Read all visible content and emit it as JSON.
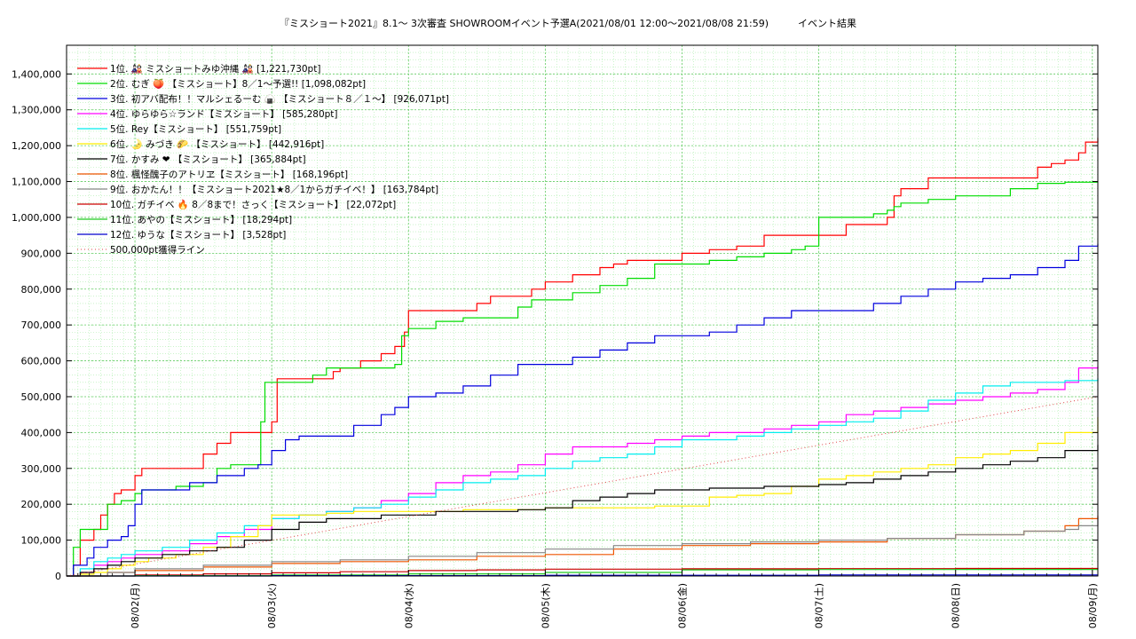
{
  "chart_data": {
    "type": "line",
    "title": "『ミスショート2021』8.1〜 3次審査 SHOWROOMイベント予選A(2021/08/01 12:00〜2021/08/08 21:59)　　　イベント結果",
    "xlabel": "",
    "ylabel": "",
    "x_ticks": [
      "08/02(月)",
      "08/03(火)",
      "08/04(水)",
      "08/05(木)",
      "08/06(金)",
      "08/07(土)",
      "08/08(日)",
      "08/09(月)"
    ],
    "x_tick_days": [
      1,
      2,
      3,
      4,
      5,
      6,
      7,
      8
    ],
    "xlim_days": [
      0.5,
      8.04
    ],
    "ylim": [
      0,
      1480000
    ],
    "y_ticks": [
      {
        "v": 0,
        "label": "0"
      },
      {
        "v": 100000,
        "label": "100,000"
      },
      {
        "v": 200000,
        "label": "200,000"
      },
      {
        "v": 300000,
        "label": "300,000"
      },
      {
        "v": 400000,
        "label": "400,000"
      },
      {
        "v": 500000,
        "label": "500,000"
      },
      {
        "v": 600000,
        "label": "600,000"
      },
      {
        "v": 700000,
        "label": "700,000"
      },
      {
        "v": 800000,
        "label": "800,000"
      },
      {
        "v": 900000,
        "label": "900,000"
      },
      {
        "v": 1000000,
        "label": "1,000,000"
      },
      {
        "v": 1100000,
        "label": "1,100,000"
      },
      {
        "v": 1200000,
        "label": "1,200,000"
      },
      {
        "v": 1300000,
        "label": "1,300,000"
      },
      {
        "v": 1400000,
        "label": "1,400,000"
      }
    ],
    "grid": true,
    "legend_position": "top-left",
    "series": [
      {
        "name": "1位.  🎎 ミスショートみゆ沖縄 🎎 [1,221,730pt]",
        "color": "#ff0000",
        "x": [
          0.5,
          0.55,
          0.6,
          0.7,
          0.75,
          0.8,
          0.85,
          0.9,
          1.0,
          1.05,
          1.1,
          1.3,
          1.5,
          1.6,
          1.7,
          1.8,
          1.9,
          2.0,
          2.04,
          2.1,
          2.4,
          2.45,
          2.5,
          2.65,
          2.8,
          2.9,
          2.97,
          3.0,
          3.2,
          3.3,
          3.5,
          3.6,
          3.7,
          3.9,
          4.0,
          4.2,
          4.4,
          4.5,
          4.6,
          4.8,
          5.0,
          5.2,
          5.4,
          5.6,
          5.8,
          6.0,
          6.2,
          6.4,
          6.5,
          6.55,
          6.6,
          6.8,
          7.0,
          7.2,
          7.4,
          7.6,
          7.7,
          7.8,
          7.9,
          7.95,
          8.04
        ],
        "y": [
          0,
          30000,
          100000,
          130000,
          170000,
          200000,
          230000,
          240000,
          280000,
          300000,
          300000,
          300000,
          340000,
          370000,
          400000,
          400000,
          400000,
          430000,
          550000,
          550000,
          550000,
          570000,
          580000,
          600000,
          620000,
          640000,
          680000,
          740000,
          740000,
          740000,
          760000,
          780000,
          780000,
          800000,
          820000,
          840000,
          860000,
          870000,
          880000,
          880000,
          900000,
          910000,
          920000,
          950000,
          950000,
          950000,
          980000,
          980000,
          1000000,
          1060000,
          1080000,
          1110000,
          1110000,
          1110000,
          1110000,
          1140000,
          1150000,
          1160000,
          1180000,
          1210000,
          1221730
        ]
      },
      {
        "name": "2位.  むぎ 🍑 【ミスショート】8／1〜予選!! [1,098,082pt]",
        "color": "#00dd00",
        "x": [
          0.5,
          0.55,
          0.6,
          0.7,
          0.8,
          0.9,
          1.0,
          1.05,
          1.1,
          1.3,
          1.5,
          1.6,
          1.7,
          1.8,
          1.9,
          1.92,
          1.95,
          2.0,
          2.1,
          2.3,
          2.4,
          2.5,
          2.7,
          2.9,
          2.95,
          3.0,
          3.2,
          3.4,
          3.6,
          3.8,
          3.9,
          4.0,
          4.2,
          4.4,
          4.6,
          4.75,
          4.8,
          5.0,
          5.2,
          5.4,
          5.6,
          5.8,
          5.9,
          6.0,
          6.2,
          6.4,
          6.5,
          6.55,
          6.6,
          6.8,
          7.0,
          7.2,
          7.4,
          7.6,
          7.8,
          8.04
        ],
        "y": [
          0,
          80000,
          130000,
          130000,
          200000,
          210000,
          230000,
          240000,
          240000,
          250000,
          260000,
          300000,
          310000,
          310000,
          310000,
          430000,
          540000,
          540000,
          540000,
          560000,
          580000,
          580000,
          580000,
          590000,
          670000,
          690000,
          710000,
          720000,
          720000,
          750000,
          770000,
          770000,
          790000,
          810000,
          830000,
          830000,
          870000,
          870000,
          880000,
          890000,
          900000,
          910000,
          920000,
          1000000,
          1000000,
          1010000,
          1020000,
          1030000,
          1040000,
          1050000,
          1060000,
          1060000,
          1080000,
          1095000,
          1098000,
          1098082
        ]
      },
      {
        "name": "3位.  初アバ配布！！マルシェるーむ 🍙 【ミスショート８／１〜】 [926,071pt]",
        "color": "#0000dd",
        "x": [
          0.5,
          0.55,
          0.65,
          0.7,
          0.8,
          0.9,
          0.95,
          1.0,
          1.05,
          1.2,
          1.4,
          1.6,
          1.8,
          1.9,
          2.0,
          2.1,
          2.2,
          2.4,
          2.6,
          2.8,
          2.9,
          3.0,
          3.2,
          3.4,
          3.6,
          3.8,
          4.0,
          4.2,
          4.4,
          4.6,
          4.8,
          5.0,
          5.2,
          5.4,
          5.6,
          5.8,
          6.0,
          6.2,
          6.4,
          6.6,
          6.8,
          7.0,
          7.2,
          7.4,
          7.6,
          7.8,
          7.9,
          8.04
        ],
        "y": [
          0,
          30000,
          50000,
          80000,
          100000,
          110000,
          140000,
          200000,
          240000,
          240000,
          260000,
          280000,
          300000,
          310000,
          350000,
          380000,
          390000,
          390000,
          420000,
          450000,
          470000,
          500000,
          510000,
          530000,
          560000,
          590000,
          590000,
          610000,
          630000,
          650000,
          670000,
          670000,
          680000,
          700000,
          720000,
          740000,
          740000,
          740000,
          760000,
          780000,
          800000,
          820000,
          830000,
          840000,
          860000,
          880000,
          920000,
          926071
        ]
      },
      {
        "name": "4位.  ゆらゆら☆ランド【ミスショート】 [585,280pt]",
        "color": "#ff00ff",
        "x": [
          0.5,
          0.6,
          0.7,
          0.8,
          0.9,
          1.0,
          1.2,
          1.4,
          1.6,
          1.8,
          2.0,
          2.2,
          2.4,
          2.6,
          2.8,
          3.0,
          3.2,
          3.4,
          3.6,
          3.8,
          4.0,
          4.2,
          4.4,
          4.6,
          4.8,
          5.0,
          5.2,
          5.4,
          5.6,
          5.8,
          6.0,
          6.2,
          6.4,
          6.6,
          6.8,
          7.0,
          7.2,
          7.4,
          7.6,
          7.8,
          7.9,
          8.04
        ],
        "y": [
          0,
          10000,
          30000,
          40000,
          50000,
          60000,
          70000,
          90000,
          110000,
          130000,
          160000,
          170000,
          180000,
          190000,
          210000,
          230000,
          260000,
          280000,
          290000,
          310000,
          340000,
          360000,
          360000,
          370000,
          380000,
          390000,
          400000,
          400000,
          410000,
          420000,
          430000,
          450000,
          460000,
          470000,
          480000,
          490000,
          500000,
          510000,
          520000,
          540000,
          580000,
          585280
        ]
      },
      {
        "name": "5位.  Rey【ミスショート】 [551,759pt]",
        "color": "#00eeee",
        "x": [
          0.5,
          0.6,
          0.7,
          0.8,
          0.9,
          1.0,
          1.2,
          1.4,
          1.6,
          1.8,
          2.0,
          2.2,
          2.4,
          2.6,
          2.8,
          3.0,
          3.2,
          3.4,
          3.6,
          3.8,
          4.0,
          4.2,
          4.4,
          4.6,
          4.8,
          5.0,
          5.2,
          5.4,
          5.6,
          5.8,
          6.0,
          6.2,
          6.4,
          6.6,
          6.8,
          7.0,
          7.2,
          7.4,
          7.6,
          7.8,
          8.04
        ],
        "y": [
          0,
          20000,
          40000,
          50000,
          60000,
          70000,
          80000,
          100000,
          120000,
          140000,
          160000,
          170000,
          180000,
          190000,
          200000,
          220000,
          240000,
          260000,
          270000,
          280000,
          300000,
          320000,
          330000,
          340000,
          360000,
          380000,
          380000,
          390000,
          400000,
          410000,
          420000,
          430000,
          440000,
          460000,
          490000,
          510000,
          530000,
          540000,
          540000,
          545000,
          551759
        ]
      },
      {
        "name": "6位.  🌛 みづき 🌮 【ミスショート】 [442,916pt]",
        "color": "#ffee00",
        "x": [
          0.5,
          0.6,
          0.7,
          0.8,
          0.9,
          1.0,
          1.1,
          1.3,
          1.5,
          1.7,
          1.9,
          2.0,
          2.2,
          2.4,
          2.6,
          2.8,
          3.0,
          3.2,
          3.4,
          3.6,
          3.8,
          4.0,
          4.2,
          4.4,
          4.6,
          4.8,
          5.0,
          5.2,
          5.4,
          5.6,
          5.8,
          6.0,
          6.2,
          6.4,
          6.6,
          6.8,
          7.0,
          7.2,
          7.4,
          7.6,
          7.8,
          8.04
        ],
        "y": [
          0,
          5000,
          10000,
          20000,
          30000,
          40000,
          50000,
          60000,
          80000,
          110000,
          140000,
          170000,
          170000,
          175000,
          180000,
          180000,
          180000,
          180000,
          185000,
          185000,
          185000,
          190000,
          190000,
          190000,
          190000,
          195000,
          195000,
          220000,
          225000,
          230000,
          250000,
          270000,
          280000,
          290000,
          300000,
          310000,
          330000,
          340000,
          350000,
          370000,
          400000,
          442916
        ]
      },
      {
        "name": "7位.  かすみ ❤ 【ミスショート】 [365,884pt]",
        "color": "#000000",
        "x": [
          0.5,
          0.6,
          0.7,
          0.8,
          0.9,
          1.0,
          1.2,
          1.4,
          1.6,
          1.8,
          2.0,
          2.2,
          2.4,
          2.6,
          2.8,
          3.0,
          3.2,
          3.4,
          3.6,
          3.8,
          4.0,
          4.2,
          4.4,
          4.6,
          4.8,
          5.0,
          5.2,
          5.4,
          5.6,
          5.8,
          6.0,
          6.2,
          6.4,
          6.6,
          6.8,
          7.0,
          7.2,
          7.4,
          7.6,
          7.8,
          8.04
        ],
        "y": [
          0,
          10000,
          20000,
          30000,
          40000,
          50000,
          60000,
          70000,
          80000,
          100000,
          130000,
          150000,
          160000,
          160000,
          170000,
          170000,
          180000,
          180000,
          180000,
          185000,
          190000,
          210000,
          220000,
          230000,
          240000,
          240000,
          245000,
          245000,
          250000,
          250000,
          255000,
          260000,
          270000,
          280000,
          290000,
          300000,
          310000,
          320000,
          330000,
          350000,
          365884
        ]
      },
      {
        "name": "8位.  楓怪醜子のアトリヱ【ミスショート】 [168,196pt]",
        "color": "#ee5500",
        "x": [
          0.5,
          0.8,
          1.0,
          1.5,
          2.0,
          2.5,
          3.0,
          3.5,
          4.0,
          4.5,
          5.0,
          5.5,
          6.0,
          6.5,
          7.0,
          7.5,
          7.8,
          7.9,
          8.04
        ],
        "y": [
          0,
          10000,
          15000,
          25000,
          35000,
          40000,
          45000,
          55000,
          60000,
          75000,
          85000,
          90000,
          95000,
          105000,
          115000,
          125000,
          140000,
          160000,
          168196
        ]
      },
      {
        "name": "9位.  おかたん！！【ミスショート2021★8／1からガチイベ！】 [163,784pt]",
        "color": "#888888",
        "x": [
          0.5,
          0.8,
          1.0,
          1.5,
          2.0,
          2.5,
          3.0,
          3.5,
          4.0,
          4.5,
          5.0,
          5.5,
          6.0,
          6.5,
          7.0,
          7.5,
          7.8,
          7.9,
          8.04
        ],
        "y": [
          0,
          10000,
          20000,
          30000,
          40000,
          45000,
          55000,
          65000,
          75000,
          85000,
          90000,
          95000,
          100000,
          105000,
          115000,
          125000,
          130000,
          140000,
          163784
        ]
      },
      {
        "name": "10位.  ガチイベ 🔥 8／8まで！さっく【ミスショート】 [22,072pt]",
        "color": "#cc0000",
        "x": [
          0.5,
          1.0,
          1.5,
          2.0,
          2.5,
          3.0,
          3.5,
          4.0,
          5.0,
          6.0,
          7.0,
          8.04
        ],
        "y": [
          0,
          3000,
          6000,
          9000,
          12000,
          15000,
          17000,
          19000,
          20000,
          20500,
          21000,
          22072
        ]
      },
      {
        "name": "11位.  あやの【ミスショート】 [18,294pt]",
        "color": "#22cc22",
        "x": [
          0.5,
          1.0,
          2.0,
          3.0,
          4.0,
          5.0,
          6.0,
          7.0,
          8.04
        ],
        "y": [
          0,
          1000,
          3000,
          6000,
          10000,
          17000,
          18000,
          18200,
          18294
        ]
      },
      {
        "name": "12位.  ゆうな【ミスショート】 [3,528pt]",
        "color": "#0000cc",
        "x": [
          0.5,
          2.0,
          4.0,
          6.0,
          8.04
        ],
        "y": [
          0,
          1000,
          2000,
          3000,
          3528
        ]
      },
      {
        "name": "500,000pt獲得ライン",
        "color": "#dd4444",
        "dotted": true,
        "x": [
          0.5,
          8.04
        ],
        "y": [
          0,
          500000
        ]
      }
    ]
  }
}
